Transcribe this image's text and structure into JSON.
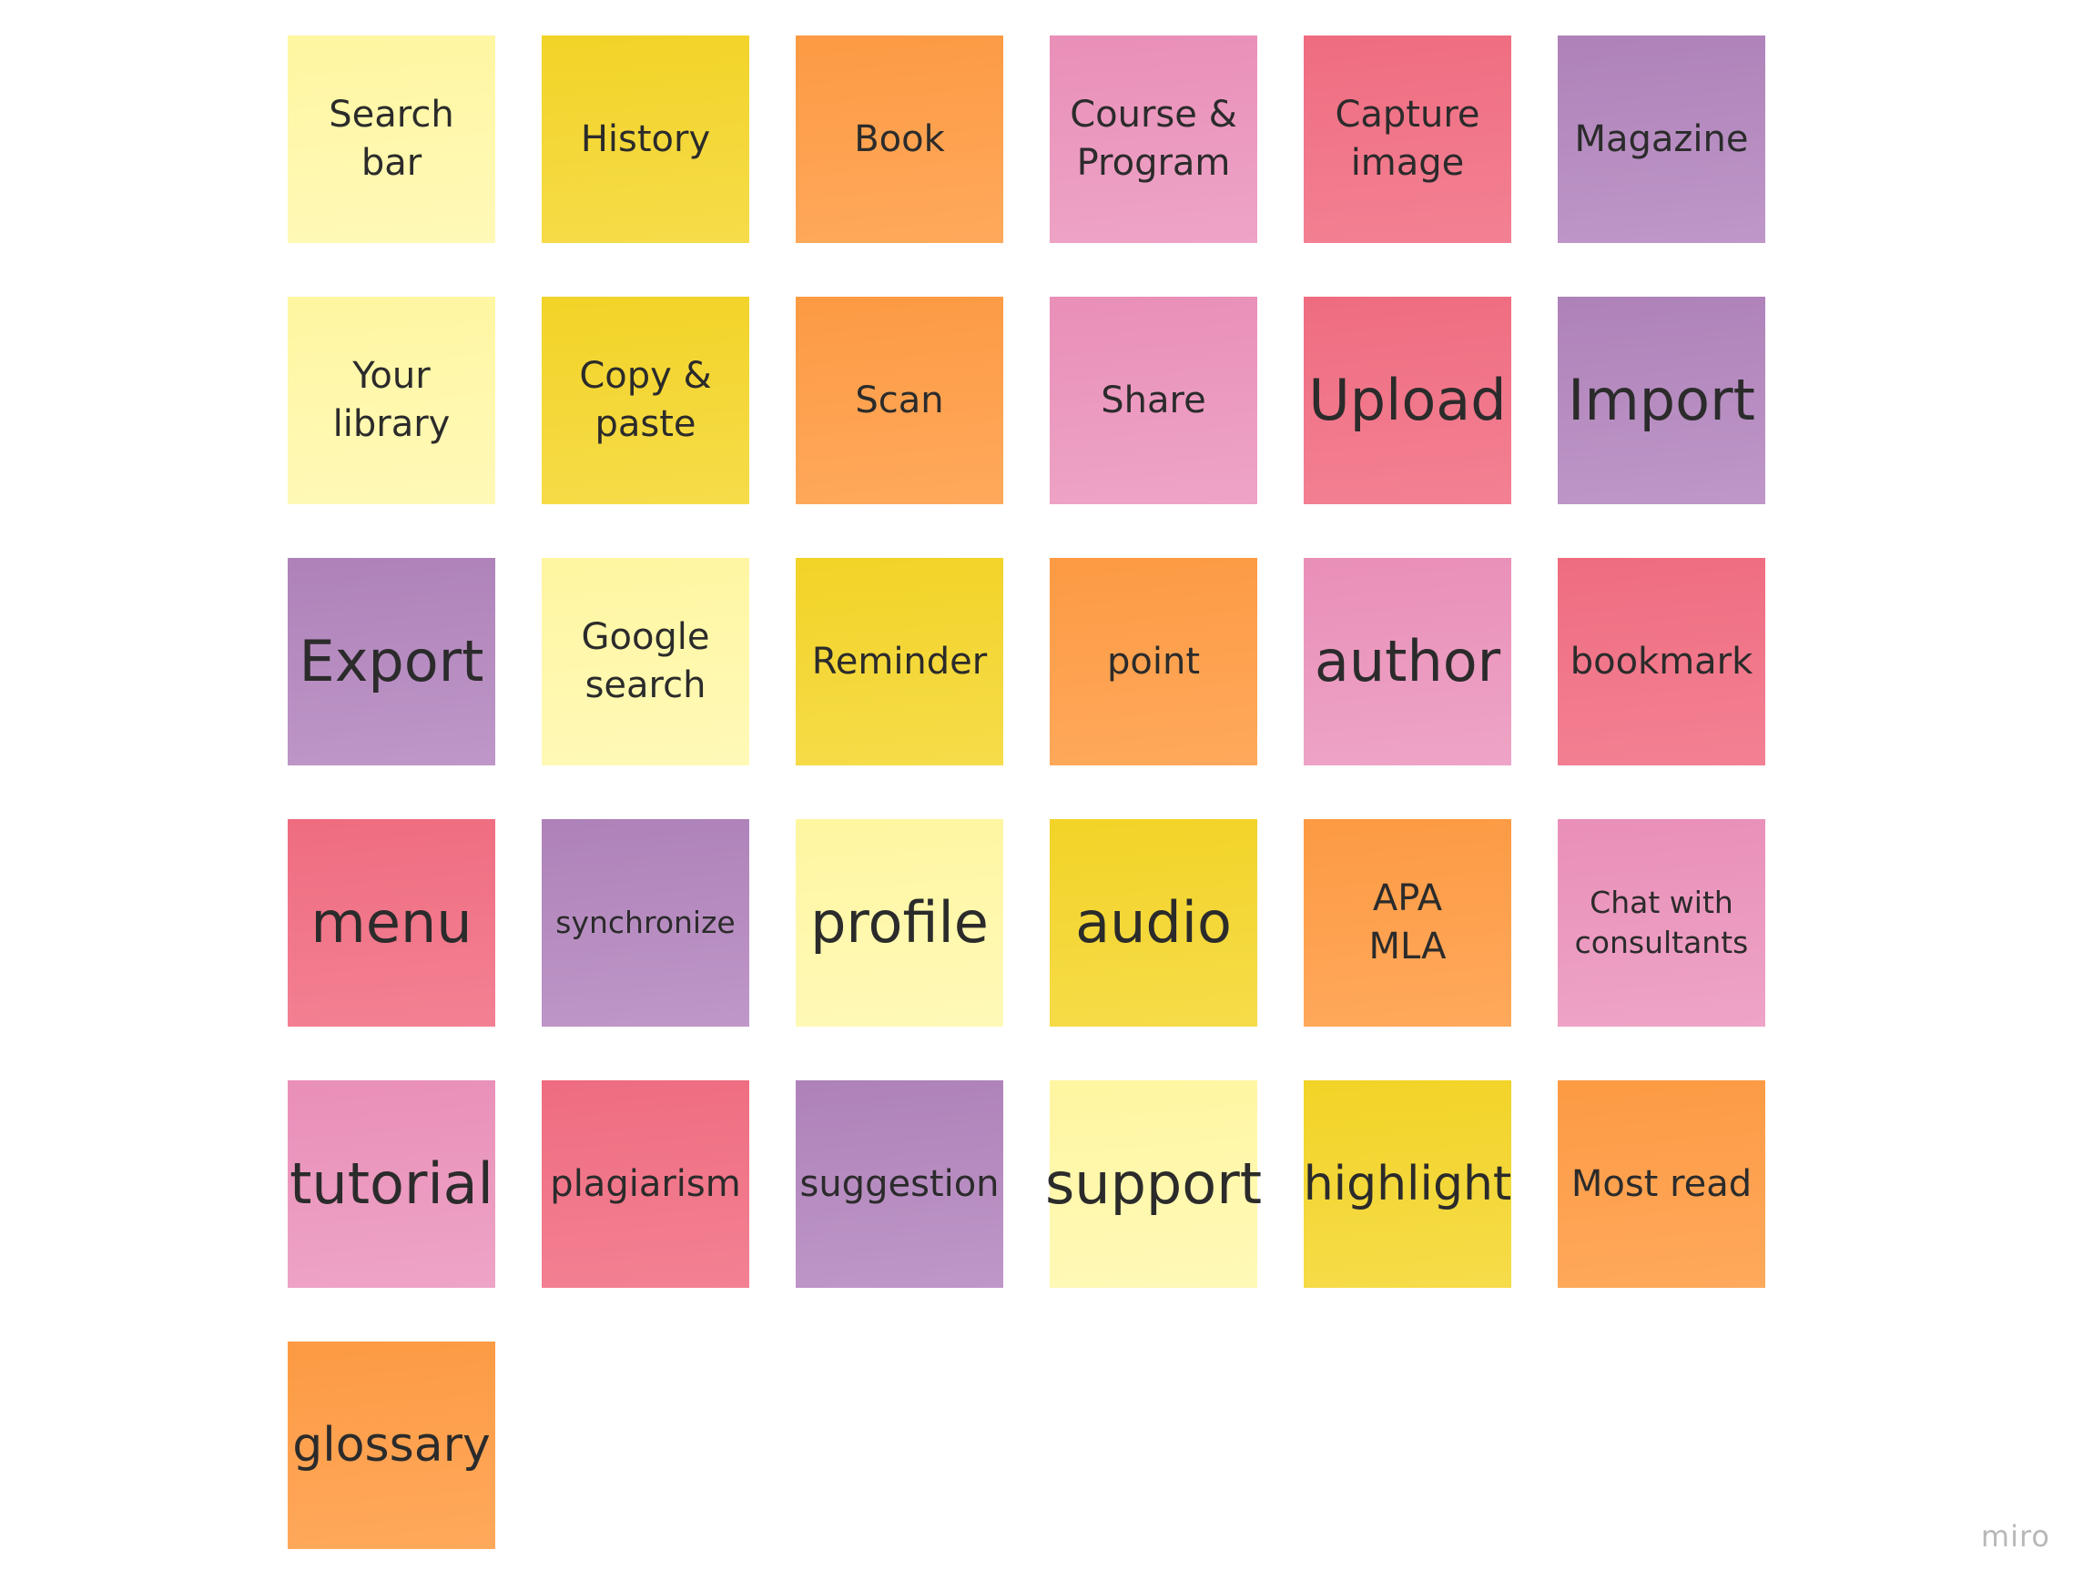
{
  "notes": [
    {
      "text": "Search\nbar",
      "color": "#fff6a1"
    },
    {
      "text": "History",
      "color": "#f2d327"
    },
    {
      "text": "Book",
      "color": "#fd9a43"
    },
    {
      "text": "Course &\nProgram",
      "color": "#e98fb8"
    },
    {
      "text": "Capture\nimage",
      "color": "#ef6c80"
    },
    {
      "text": "Magazine",
      "color": "#ae82b9"
    },
    {
      "text": "Your\nlibrary",
      "color": "#fff6a1"
    },
    {
      "text": "Copy &\npaste",
      "color": "#f2d327"
    },
    {
      "text": "Scan",
      "color": "#fd9a43"
    },
    {
      "text": "Share",
      "color": "#e98fb8"
    },
    {
      "text": "Upload",
      "color": "#ef6c80"
    },
    {
      "text": "Import",
      "color": "#ae82b9"
    },
    {
      "text": "Export",
      "color": "#ae82b9"
    },
    {
      "text": "Google\nsearch",
      "color": "#fff6a1"
    },
    {
      "text": "Reminder",
      "color": "#f2d327"
    },
    {
      "text": "point",
      "color": "#fd9a43"
    },
    {
      "text": "author",
      "color": "#e98fb8"
    },
    {
      "text": "bookmark",
      "color": "#ef6c80"
    },
    {
      "text": "menu",
      "color": "#ef6c80"
    },
    {
      "text": "synchronize",
      "color": "#ae82b9"
    },
    {
      "text": "profile",
      "color": "#fff6a1"
    },
    {
      "text": "audio",
      "color": "#f2d327"
    },
    {
      "text": "APA\nMLA",
      "color": "#fd9a43"
    },
    {
      "text": "Chat with\nconsultants",
      "color": "#e98fb8"
    },
    {
      "text": "tutorial",
      "color": "#e98fb8"
    },
    {
      "text": "plagiarism",
      "color": "#ef6c80"
    },
    {
      "text": "suggestion",
      "color": "#ae82b9"
    },
    {
      "text": "support",
      "color": "#fff6a1"
    },
    {
      "text": "highlight",
      "color": "#f2d327"
    },
    {
      "text": "Most read",
      "color": "#fd9a43"
    },
    {
      "text": "glossary",
      "color": "#fd9a43"
    }
  ],
  "brand": {
    "logo_text": "miro"
  }
}
